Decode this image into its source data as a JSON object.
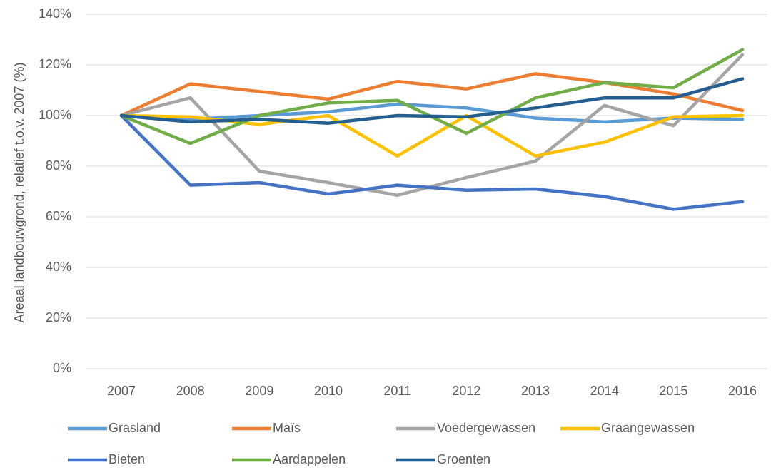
{
  "chart_data": {
    "type": "line",
    "y_label": "Areaal landbouwgrond, relatief t.o.v. 2007 (%)",
    "categories": [
      "2007",
      "2008",
      "2009",
      "2010",
      "2011",
      "2012",
      "2013",
      "2014",
      "2015",
      "2016"
    ],
    "series": [
      {
        "name": "Grasland",
        "color": "#5b9bd5",
        "values": [
          100,
          98.5,
          100,
          101.5,
          104.5,
          103,
          99,
          97.5,
          99,
          98.5
        ]
      },
      {
        "name": "Maïs",
        "color": "#ed7d31",
        "values": [
          100,
          112.5,
          109.5,
          106.5,
          113.5,
          110.5,
          116.5,
          113,
          108.5,
          102
        ]
      },
      {
        "name": "Voedergewassen",
        "color": "#a5a5a5",
        "values": [
          100,
          107,
          78,
          73.5,
          68.5,
          75.5,
          82,
          104,
          96,
          124
        ]
      },
      {
        "name": "Graangewassen",
        "color": "#ffc000",
        "values": [
          100,
          99.5,
          96.5,
          100,
          84,
          100,
          84,
          89.5,
          99.5,
          100
        ]
      },
      {
        "name": "Bieten",
        "color": "#4472c4",
        "values": [
          100,
          72.5,
          73.5,
          69,
          72.5,
          70.5,
          71,
          68,
          63,
          66
        ]
      },
      {
        "name": "Aardappelen",
        "color": "#70ad47",
        "values": [
          100,
          89,
          100,
          105,
          106,
          93,
          107,
          113,
          111,
          126
        ]
      },
      {
        "name": "Groenten",
        "color": "#255e91",
        "values": [
          100,
          97.5,
          98.5,
          97,
          100,
          99.5,
          103,
          107,
          107,
          114.5
        ]
      }
    ],
    "ylim": [
      0,
      140
    ],
    "yticks": [
      {
        "value": 0,
        "label": "0%"
      },
      {
        "value": 20,
        "label": "20%"
      },
      {
        "value": 40,
        "label": "40%"
      },
      {
        "value": 60,
        "label": "60%"
      },
      {
        "value": 80,
        "label": "80%"
      },
      {
        "value": 100,
        "label": "100%"
      },
      {
        "value": 120,
        "label": "120%"
      },
      {
        "value": 140,
        "label": "140%"
      }
    ],
    "grid": true,
    "legend": "bottom"
  }
}
